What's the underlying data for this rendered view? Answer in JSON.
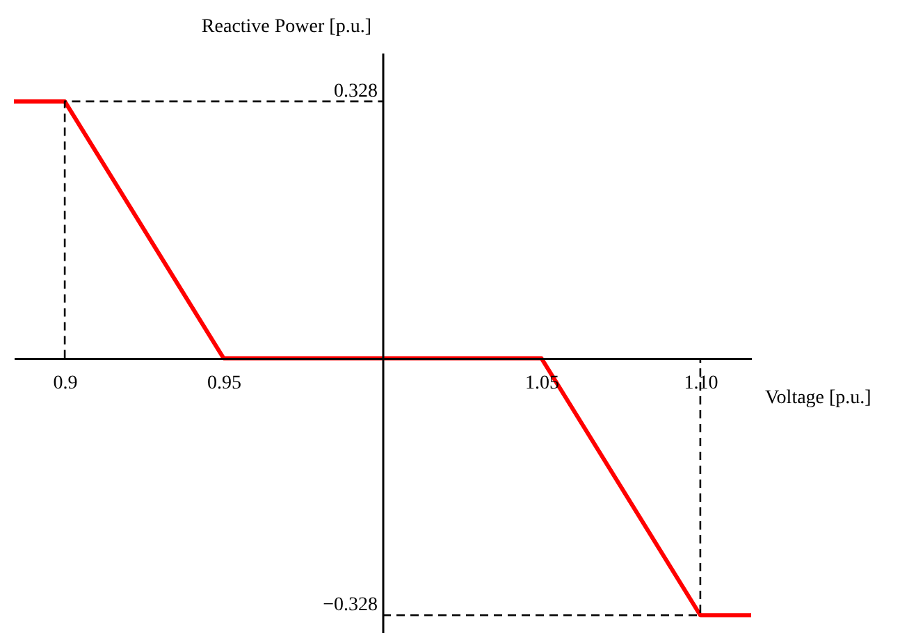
{
  "chart_data": {
    "type": "line",
    "xlabel": "Voltage [p.u.]",
    "ylabel": "Reactive Power [p.u.]",
    "xlim": [
      0.884,
      1.116
    ],
    "ylim": [
      -0.35,
      0.39
    ],
    "xticks": [
      0.9,
      0.95,
      1.05,
      {
        "value": 1.1,
        "label": "1.10"
      }
    ],
    "yticks": [
      0.328,
      {
        "value": -0.328,
        "label": "−0.328"
      }
    ],
    "series": [
      {
        "color": "#ff0000",
        "line_style": "solid",
        "x": [
          0.884,
          0.9,
          0.95,
          1.05,
          1.1,
          1.116
        ],
        "values": [
          0.328,
          0.328,
          0,
          0,
          -0.328,
          -0.328
        ]
      },
      {
        "color": "#000000",
        "line_style": "dashed",
        "x": [
          0.9,
          0.9,
          1.0
        ],
        "values": [
          0,
          0.328,
          0.328
        ]
      },
      {
        "color": "#000000",
        "line_style": "dashed",
        "x": [
          1.0,
          1.1,
          1.1
        ],
        "values": [
          -0.328,
          -0.328,
          0
        ]
      }
    ],
    "grid": false,
    "legend": false,
    "marker": "none"
  }
}
